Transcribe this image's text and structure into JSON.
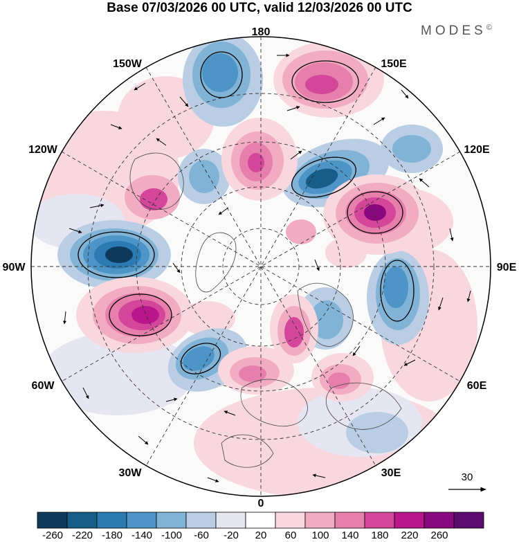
{
  "header": {
    "title": "Base 07/03/2026 00 UTC, valid 12/03/2026 00 UTC",
    "brand": "MODES",
    "brand_mark": "©"
  },
  "map": {
    "projection": "north-polar-stereographic",
    "longitude_labels": [
      "180",
      "150E",
      "120E",
      "90E",
      "60E",
      "30E",
      "0",
      "30W",
      "60W",
      "90W",
      "120W",
      "150W"
    ]
  },
  "vector_key": {
    "label": "30"
  },
  "colorbar": {
    "labels": [
      "-260",
      "-220",
      "-180",
      "-140",
      "-100",
      "-60",
      "-20",
      "20",
      "60",
      "100",
      "140",
      "180",
      "220",
      "260"
    ],
    "colors": [
      "#0e3b5c",
      "#165d8a",
      "#2b7bb2",
      "#4c95c6",
      "#81b3d6",
      "#b9cee4",
      "#e6e6f2",
      "#ffffff",
      "#f9d7df",
      "#f1abc3",
      "#e77fac",
      "#d4469a",
      "#b8168a",
      "#8a087d",
      "#5c0b6e"
    ]
  }
}
